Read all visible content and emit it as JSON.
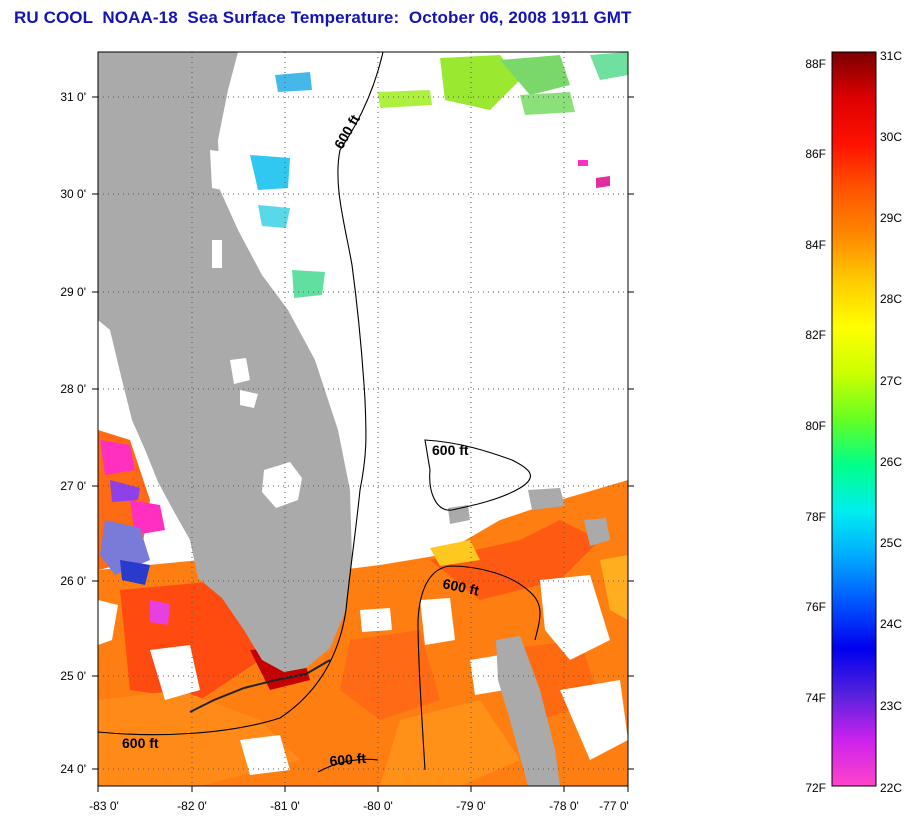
{
  "title": "RU COOL  NOAA-18  Sea Surface Temperature:  October 06, 2008 1911 GMT",
  "map": {
    "lon_ticks": [
      "-83 0'",
      "-82 0'",
      "-81 0'",
      "-80 0'",
      "-79 0'",
      "-78 0'",
      "-77 0'"
    ],
    "lat_ticks": [
      "31 0'",
      "30 0'",
      "29 0'",
      "28 0'",
      "27 0'",
      "26 0'",
      "25 0'",
      "24 0'"
    ],
    "contour_labels": [
      "600 ft",
      "600 ft",
      "600 ft",
      "600 ft",
      "600 ft"
    ],
    "land_color": "#aaaaaa",
    "cloud_color": "#ffffff"
  },
  "colorbar": {
    "fahrenheit_labels": [
      "88F",
      "86F",
      "84F",
      "82F",
      "80F",
      "78F",
      "76F",
      "74F",
      "72F"
    ],
    "celsius_labels": [
      "31C",
      "30C",
      "29C",
      "28C",
      "27C",
      "26C",
      "25C",
      "24C",
      "23C",
      "22C"
    ],
    "gradient": [
      "#ff44c8",
      "#cc22ee",
      "#5522dd",
      "#0000ee",
      "#0055ff",
      "#00aaff",
      "#00eeee",
      "#00ff88",
      "#66ff22",
      "#ccff00",
      "#ffff00",
      "#ffcc00",
      "#ff8800",
      "#ff5500",
      "#ff1100",
      "#dd0000",
      "#7a0000"
    ]
  }
}
